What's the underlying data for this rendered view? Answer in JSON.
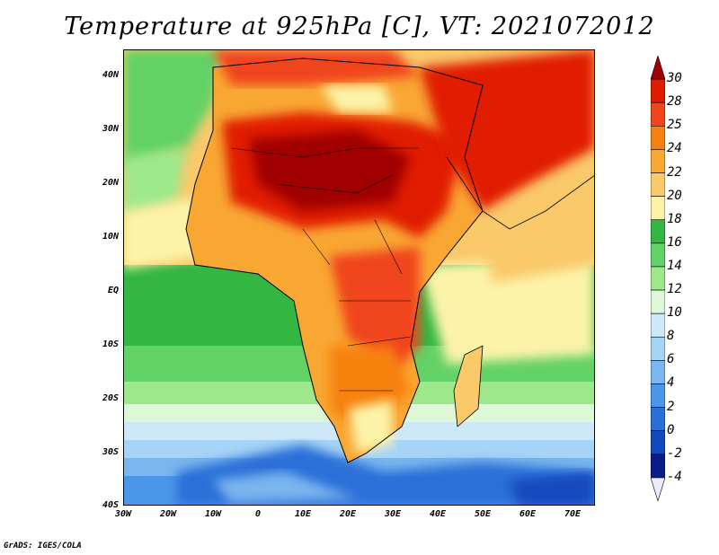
{
  "title": "Temperature at 925hPa [C], VT: 2021072012",
  "credit": "GrADS: IGES/COLA",
  "lat_ticks": [
    "40N",
    "30N",
    "20N",
    "10N",
    "EQ",
    "10S",
    "20S",
    "30S",
    "40S"
  ],
  "lon_ticks": [
    "30W",
    "20W",
    "10W",
    "0",
    "10E",
    "20E",
    "30E",
    "40E",
    "50E",
    "60E",
    "70E"
  ],
  "colorbar": {
    "levels": [
      "30",
      "28",
      "25",
      "24",
      "22",
      "20",
      "18",
      "16",
      "14",
      "12",
      "10",
      "8",
      "6",
      "4",
      "2",
      "0",
      "-2",
      "-4"
    ],
    "colors": [
      "#a00000",
      "#e11b00",
      "#f0441a",
      "#f7810f",
      "#f9a733",
      "#f9c96a",
      "#fcf3a8",
      "#34b643",
      "#62d166",
      "#9ee88c",
      "#def7d6",
      "#cde9f8",
      "#a6d4f6",
      "#7bb6ee",
      "#4a97ea",
      "#2a6fd8",
      "#1449be",
      "#0a1d8a",
      "#ece9fb"
    ]
  },
  "map": {
    "region": "Africa",
    "lat_range": [
      -40,
      45
    ],
    "lon_range": [
      -30,
      75
    ]
  }
}
